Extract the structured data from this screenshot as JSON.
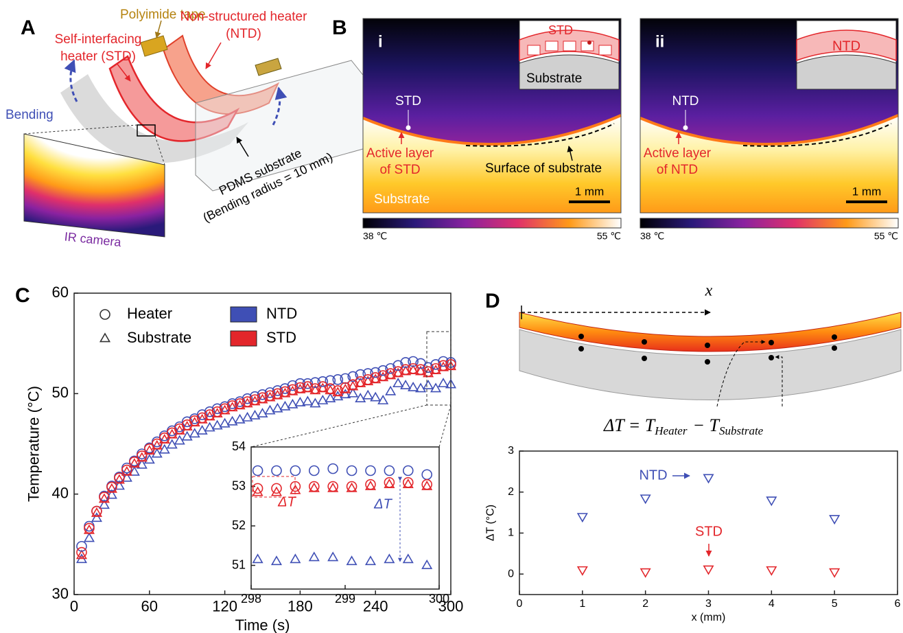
{
  "panel_a": {
    "letter": "A",
    "polyimide_tape": "Polyimide tape",
    "std_heater": [
      "Self-interfacing",
      "heater (STD)"
    ],
    "ntd_heater": [
      "Non-structured heater",
      "(NTD)"
    ],
    "bending": "Bending",
    "substrate": [
      "PDMS substrate",
      "(Bending radius = 10 mm)"
    ],
    "camera": "IR camera"
  },
  "panel_b": {
    "letter": "B",
    "images": [
      {
        "label": "i",
        "inset_layer": "STD",
        "inset_substrate": "Substrate",
        "point": "STD",
        "active_layer": [
          "Active layer",
          "of STD"
        ],
        "surface": "Surface of substrate",
        "scale": "1 mm",
        "substrate": "Substrate",
        "colorbar": [
          "38 ℃",
          "55 ℃"
        ]
      },
      {
        "label": "ii",
        "inset_layer": "NTD",
        "point": "NTD",
        "active_layer": [
          "Active layer",
          "of NTD"
        ],
        "scale": "1 mm",
        "colorbar": [
          "38 ℃",
          "55 ℃"
        ]
      }
    ]
  },
  "panel_c": {
    "letter": "C"
  },
  "panel_d": {
    "letter": "D",
    "x_arrow": "x",
    "formula": {
      "lhs": "ΔT = T",
      "sub1": "Heater",
      "mid": "− T",
      "sub2": "Substrate"
    }
  },
  "chart_data": [
    {
      "type": "scatter",
      "xlabel": "Time (s)",
      "ylabel": "Temperature (°C)",
      "xlim": [
        0,
        300
      ],
      "ylim": [
        30,
        60
      ],
      "xticks": [
        0,
        60,
        120,
        180,
        240,
        300
      ],
      "yticks": [
        30,
        40,
        50,
        60
      ],
      "legend_markers": [
        {
          "label": "Heater",
          "shape": "circle"
        },
        {
          "label": "Substrate",
          "shape": "triangle"
        }
      ],
      "legend_colors": [
        {
          "label": "NTD",
          "color": "#3f4fb5"
        },
        {
          "label": "STD",
          "color": "#e3262b"
        }
      ],
      "x": [
        6,
        12,
        18,
        24,
        30,
        36,
        42,
        48,
        54,
        60,
        66,
        72,
        78,
        84,
        90,
        96,
        102,
        108,
        114,
        120,
        126,
        132,
        138,
        144,
        150,
        156,
        162,
        168,
        174,
        180,
        186,
        192,
        198,
        204,
        210,
        216,
        222,
        228,
        234,
        240,
        246,
        252,
        258,
        264,
        270,
        276,
        282,
        288,
        294,
        300
      ],
      "series": [
        {
          "shape": "triangle",
          "color": "#3f4fb5",
          "values": [
            33.5,
            35.6,
            37.6,
            38.9,
            39.9,
            40.8,
            41.6,
            42.2,
            42.9,
            43.4,
            44.0,
            44.4,
            44.9,
            45.3,
            45.7,
            46.0,
            46.3,
            46.6,
            46.8,
            47.0,
            47.2,
            47.4,
            47.6,
            47.8,
            48.0,
            48.3,
            48.5,
            48.7,
            48.9,
            49.1,
            49.2,
            49.0,
            49.3,
            49.5,
            49.7,
            49.9,
            50.0,
            49.5,
            49.8,
            49.6,
            49.3,
            50.2,
            51.0,
            50.8,
            50.6,
            50.5,
            50.8,
            50.5,
            51.0,
            50.9
          ]
        },
        {
          "shape": "triangle",
          "color": "#e3262b",
          "values": [
            33.9,
            36.4,
            38.1,
            39.5,
            40.5,
            41.4,
            42.2,
            43.0,
            43.6,
            44.3,
            44.8,
            45.4,
            45.9,
            46.3,
            46.7,
            47.1,
            47.4,
            47.7,
            48.0,
            48.3,
            48.6,
            48.8,
            49.0,
            49.2,
            49.4,
            49.6,
            49.8,
            50.0,
            50.2,
            50.4,
            50.5,
            50.3,
            50.5,
            50.3,
            50.1,
            50.4,
            50.7,
            51.0,
            51.2,
            51.4,
            51.6,
            51.8,
            52.0,
            52.2,
            52.3,
            52.2,
            52.0,
            52.3,
            52.6,
            52.7
          ]
        },
        {
          "shape": "circle",
          "color": "#3f4fb5",
          "values": [
            34.8,
            36.8,
            38.3,
            39.8,
            40.8,
            41.7,
            42.6,
            43.3,
            44.0,
            44.6,
            45.2,
            45.8,
            46.3,
            46.7,
            47.2,
            47.5,
            47.9,
            48.2,
            48.5,
            48.7,
            49.0,
            49.2,
            49.5,
            49.7,
            49.9,
            50.1,
            50.3,
            50.5,
            50.8,
            51.0,
            51.0,
            51.1,
            51.2,
            51.3,
            51.4,
            51.5,
            51.7,
            51.9,
            52.0,
            52.1,
            52.3,
            52.5,
            52.8,
            53.1,
            53.2,
            53.0,
            52.6,
            52.9,
            53.2,
            53.1
          ]
        },
        {
          "shape": "circle",
          "color": "#e3262b",
          "values": [
            34.2,
            36.6,
            38.3,
            39.7,
            40.7,
            41.6,
            42.4,
            43.2,
            43.8,
            44.5,
            45.0,
            45.6,
            46.1,
            46.5,
            46.9,
            47.3,
            47.6,
            47.9,
            48.2,
            48.5,
            48.8,
            49.0,
            49.2,
            49.4,
            49.6,
            49.8,
            50.0,
            50.2,
            50.4,
            50.6,
            50.7,
            50.5,
            50.7,
            50.5,
            50.3,
            50.6,
            50.9,
            51.2,
            51.4,
            51.6,
            51.8,
            52.0,
            52.2,
            52.4,
            52.5,
            52.4,
            52.2,
            52.5,
            52.8,
            52.9
          ]
        }
      ]
    },
    {
      "type": "scatter",
      "xlim": [
        298,
        300
      ],
      "ylim": [
        50.4,
        54
      ],
      "xticks": [
        298,
        299,
        300
      ],
      "yticks": [
        51,
        52,
        53,
        54
      ],
      "annotations": [
        {
          "text": "ΔT",
          "color": "#e3262b"
        },
        {
          "text": "ΔT",
          "color": "#3f4fb5"
        }
      ],
      "x": [
        298.07,
        298.27,
        298.47,
        298.67,
        298.87,
        299.07,
        299.27,
        299.47,
        299.67,
        299.87
      ],
      "series": [
        {
          "shape": "triangle",
          "color": "#3f4fb5",
          "values": [
            51.15,
            51.1,
            51.15,
            51.2,
            51.2,
            51.1,
            51.1,
            51.15,
            51.15,
            51.0
          ]
        },
        {
          "shape": "triangle",
          "color": "#e3262b",
          "values": [
            52.85,
            52.85,
            52.9,
            52.95,
            52.95,
            52.95,
            53.0,
            53.05,
            53.05,
            53.0
          ]
        },
        {
          "shape": "circle",
          "color": "#3f4fb5",
          "values": [
            53.4,
            53.4,
            53.4,
            53.4,
            53.45,
            53.4,
            53.4,
            53.4,
            53.4,
            53.3
          ]
        },
        {
          "shape": "circle",
          "color": "#e3262b",
          "values": [
            52.95,
            52.95,
            53.0,
            53.0,
            53.0,
            53.0,
            53.05,
            53.1,
            53.1,
            53.05
          ]
        }
      ]
    },
    {
      "type": "scatter",
      "xlabel": "x (mm)",
      "ylabel": "ΔT (°C)",
      "xlim": [
        0,
        6
      ],
      "ylim": [
        -0.5,
        3
      ],
      "xticks": [
        0,
        1,
        2,
        3,
        4,
        5,
        6
      ],
      "yticks": [
        0,
        1,
        2,
        3
      ],
      "x": [
        1,
        2,
        3,
        4,
        5
      ],
      "series": [
        {
          "name": "NTD",
          "shape": "triangle-down",
          "color": "#3f4fb5",
          "values": [
            1.4,
            1.85,
            2.35,
            1.8,
            1.35
          ]
        },
        {
          "name": "STD",
          "shape": "triangle-down",
          "color": "#e3262b",
          "values": [
            0.1,
            0.05,
            0.12,
            0.1,
            0.05
          ]
        }
      ]
    }
  ]
}
